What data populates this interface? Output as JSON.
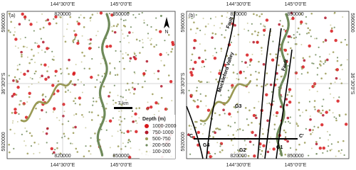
{
  "panels": [
    {
      "label": "(a)",
      "top": [
        "144°30'0\"E",
        "145°0'0\"E"
      ],
      "top_inner": [
        "820000",
        "850000"
      ],
      "bottom_inner": [
        "820000",
        "850000"
      ],
      "bottom": [
        "144°30'0\"E",
        "145°0'0\"E"
      ],
      "left": [
        "5960000",
        "36°30'0\"S",
        "5920000"
      ]
    },
    {
      "label": "(b)",
      "top": [
        "144°30'0\"E",
        "145°0'0\"E"
      ],
      "top_inner": [
        "820000",
        "850000"
      ],
      "bottom_inner": [
        "820000",
        "850000"
      ],
      "bottom": [
        "144°30'0\"E",
        "145°0'0\"E"
      ],
      "left": [
        "5960000",
        "36°30'0\"S",
        "5920000"
      ],
      "right": [
        "36°30'0\"S",
        "5960000"
      ]
    }
  ],
  "legend": {
    "title": "Depth (m)",
    "items": [
      {
        "label": "1000-2000",
        "color": "#d7191c"
      },
      {
        "label": "750-1000",
        "color": "#b2182b"
      },
      {
        "label": "500-750",
        "color": "#9a9a55"
      },
      {
        "label": "200-500",
        "color": "#6f8a5a"
      },
      {
        "label": "100-200",
        "color": "#c8c89a"
      }
    ]
  },
  "scale": "7 km",
  "north": "N",
  "annotations": [
    "Fault",
    "Muckleford Valley",
    "Fault",
    "G3",
    "G4",
    "G2",
    "G1",
    "C",
    "C'"
  ]
}
